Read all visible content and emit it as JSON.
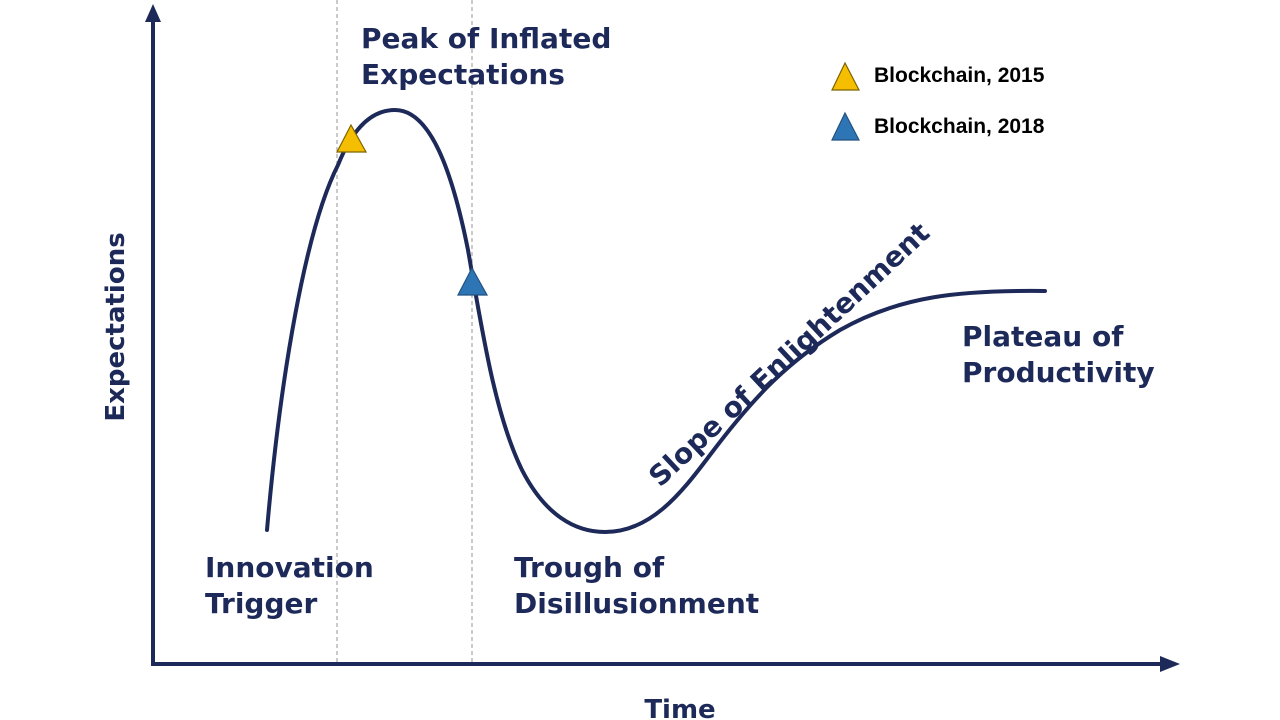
{
  "diagram": {
    "phases": {
      "peak": {
        "line1": "Peak of Inflated",
        "line2": "Expectations"
      },
      "trigger": {
        "line1": "Innovation",
        "line2": "Trigger"
      },
      "trough": {
        "line1": "Trough of",
        "line2": "Disillusionment"
      },
      "slope": "Slope of Enlightenment",
      "plateau": {
        "line1": "Plateau of",
        "line2": "Productivity"
      }
    },
    "axes": {
      "y_label": "Expectations",
      "x_label": "Time"
    },
    "legend": [
      {
        "label": "Blockchain, 2015",
        "color": "#f5be00",
        "marker": "triangle-marker"
      },
      {
        "label": "Blockchain, 2018",
        "color": "#2e75b6",
        "marker": "triangle-marker"
      }
    ],
    "colors": {
      "curve": "#1d2a59",
      "axis": "#1d2a59",
      "guides": "#b8b8b8"
    }
  }
}
